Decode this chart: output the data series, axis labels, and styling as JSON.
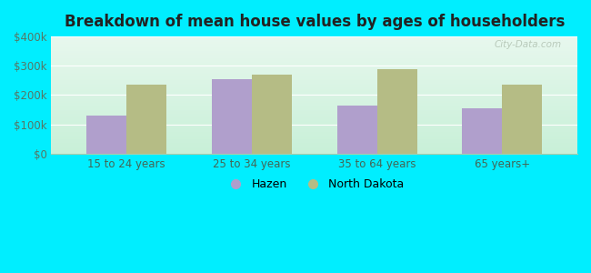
{
  "title": "Breakdown of mean house values by ages of householders",
  "categories": [
    "15 to 24 years",
    "25 to 34 years",
    "35 to 64 years",
    "65 years+"
  ],
  "hazen_values": [
    130000,
    255000,
    165000,
    155000
  ],
  "nd_values": [
    235000,
    270000,
    290000,
    235000
  ],
  "hazen_color": "#b09fcc",
  "nd_color": "#b5bc85",
  "background_color": "#00eeff",
  "plot_bg_top": "#e8f8ee",
  "plot_bg_bottom": "#c8f0d8",
  "ylim": [
    0,
    400000
  ],
  "yticks": [
    0,
    100000,
    200000,
    300000,
    400000
  ],
  "ytick_labels": [
    "$0",
    "$100k",
    "$200k",
    "$300k",
    "$400k"
  ],
  "legend_labels": [
    "Hazen",
    "North Dakota"
  ],
  "bar_width": 0.32,
  "watermark": "City-Data.com"
}
